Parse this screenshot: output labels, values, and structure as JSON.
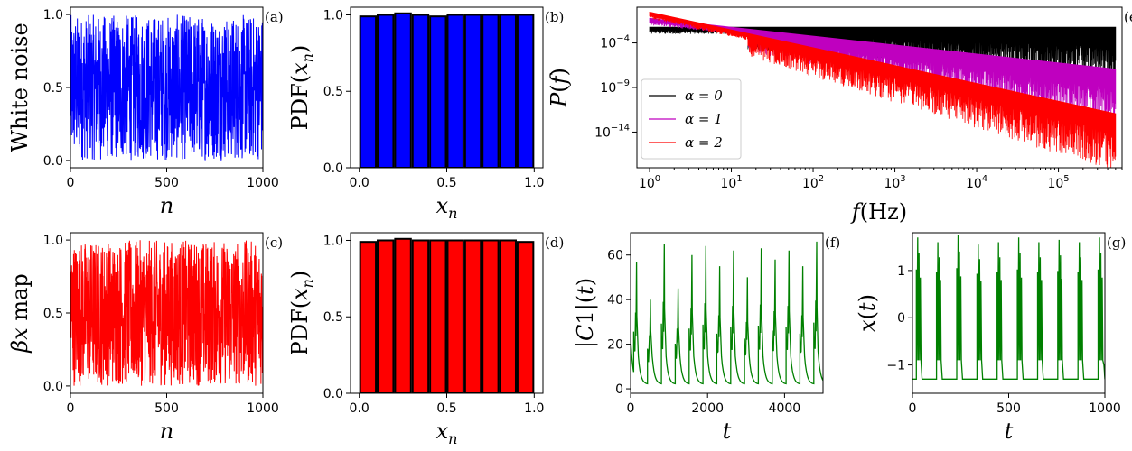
{
  "colors": {
    "white_noise": "#0000ff",
    "beta_map": "#ff0000",
    "alpha0": "#000000",
    "alpha1": "#bf00bf",
    "alpha2": "#ff0000",
    "chaos": "#008000"
  },
  "chart_data": [
    {
      "id": "a",
      "panel_label": "(a)",
      "type": "line",
      "ylabel": "White noise",
      "xlabel": "n",
      "xlim": [
        0,
        1000
      ],
      "ylim": [
        0,
        1
      ],
      "xticks": [
        0,
        500,
        1000
      ],
      "xtick_labels": [
        "0",
        "500",
        "1000"
      ],
      "yticks": [
        0.0,
        0.5,
        1.0
      ],
      "ytick_labels": [
        "0.0",
        "0.5",
        "1.0"
      ],
      "series": [
        {
          "name": "white noise",
          "n_points": 1000,
          "distribution": "uniform",
          "min": 0,
          "max": 1
        }
      ]
    },
    {
      "id": "b",
      "panel_label": "(b)",
      "type": "bar",
      "ylabel": "PDF(x_n)",
      "xlabel": "x_n",
      "xlim": [
        0,
        1
      ],
      "ylim": [
        0,
        1.05
      ],
      "xticks": [
        0.0,
        0.5,
        1.0
      ],
      "xtick_labels": [
        "0.0",
        "0.5",
        "1.0"
      ],
      "yticks": [
        0.0,
        0.5,
        1.0
      ],
      "ytick_labels": [
        "0.0",
        "0.5",
        "1.0"
      ],
      "categories": [
        0.05,
        0.15,
        0.25,
        0.35,
        0.45,
        0.55,
        0.65,
        0.75,
        0.85,
        0.95
      ],
      "values": [
        0.99,
        1.0,
        1.01,
        1.0,
        0.99,
        1.0,
        1.0,
        1.0,
        1.0,
        1.0
      ]
    },
    {
      "id": "e",
      "panel_label": "(e)",
      "type": "line",
      "ylabel": "P(f)",
      "xlabel": "f(Hz)",
      "xscale": "log",
      "yscale": "log",
      "xlim": [
        0.7,
        600000
      ],
      "ylim": [
        1e-18,
        1.0
      ],
      "xticks": [
        1,
        10,
        100,
        1000,
        10000,
        100000
      ],
      "xtick_labels": [
        "10^0",
        "10^1",
        "10^2",
        "10^3",
        "10^4",
        "10^5"
      ],
      "yticks": [
        1e-14,
        1e-09,
        0.0001
      ],
      "ytick_labels": [
        "10^-14",
        "10^-9",
        "10^-4"
      ],
      "legend": {
        "position": "lower-left",
        "entries": [
          "α = 0",
          "α = 1",
          "α = 2"
        ]
      },
      "series": [
        {
          "name": "α = 0",
          "alpha": 0,
          "f_range": [
            1,
            500000
          ],
          "log10_P_at_1Hz": -2.5
        },
        {
          "name": "α = 1",
          "alpha": 1,
          "f_range": [
            1,
            500000
          ],
          "log10_P_at_1Hz": -1.5
        },
        {
          "name": "α = 2",
          "alpha": 2,
          "f_range": [
            1,
            500000
          ],
          "log10_P_at_1Hz": -0.8
        }
      ]
    },
    {
      "id": "c",
      "panel_label": "(c)",
      "type": "line",
      "ylabel": "βx map",
      "xlabel": "n",
      "xlim": [
        0,
        1000
      ],
      "ylim": [
        0,
        1
      ],
      "xticks": [
        0,
        500,
        1000
      ],
      "xtick_labels": [
        "0",
        "500",
        "1000"
      ],
      "yticks": [
        0.0,
        0.5,
        1.0
      ],
      "ytick_labels": [
        "0.0",
        "0.5",
        "1.0"
      ],
      "series": [
        {
          "name": "beta x map",
          "n_points": 1000,
          "distribution": "uniform",
          "min": 0,
          "max": 1
        }
      ]
    },
    {
      "id": "d",
      "panel_label": "(d)",
      "type": "bar",
      "ylabel": "PDF(x_n)",
      "xlabel": "x_n",
      "xlim": [
        0,
        1
      ],
      "ylim": [
        0,
        1.05
      ],
      "xticks": [
        0.0,
        0.5,
        1.0
      ],
      "xtick_labels": [
        "0.0",
        "0.5",
        "1.0"
      ],
      "yticks": [
        0.0,
        0.5,
        1.0
      ],
      "ytick_labels": [
        "0.0",
        "0.5",
        "1.0"
      ],
      "categories": [
        0.05,
        0.15,
        0.25,
        0.35,
        0.45,
        0.55,
        0.65,
        0.75,
        0.85,
        0.95
      ],
      "values": [
        0.99,
        1.0,
        1.01,
        1.0,
        1.0,
        1.0,
        1.0,
        1.0,
        1.0,
        0.99
      ]
    },
    {
      "id": "f",
      "panel_label": "(f)",
      "type": "line",
      "ylabel": "|C1|(t)",
      "xlabel": "t",
      "xlim": [
        0,
        5000
      ],
      "ylim": [
        -2,
        70
      ],
      "xticks": [
        0,
        2000,
        4000
      ],
      "xtick_labels": [
        "0",
        "2000",
        "4000"
      ],
      "yticks": [
        0,
        20,
        40,
        60
      ],
      "ytick_labels": [
        "0",
        "20",
        "40",
        "60"
      ],
      "series": [
        {
          "name": "|C1|(t)",
          "spike_times": [
            80,
            440,
            800,
            1160,
            1520,
            1880,
            2240,
            2600,
            2960,
            3320,
            3680,
            4040,
            4400,
            4760
          ],
          "spike_peak_max": 65,
          "baseline": 2
        }
      ]
    },
    {
      "id": "g",
      "panel_label": "(g)",
      "type": "line",
      "ylabel": "x(t)",
      "xlabel": "t",
      "xlim": [
        0,
        1000
      ],
      "ylim": [
        -1.6,
        1.8
      ],
      "xticks": [
        0,
        500,
        1000
      ],
      "xtick_labels": [
        "0",
        "500",
        "1000"
      ],
      "yticks": [
        -1,
        0,
        1
      ],
      "ytick_labels": [
        "−1",
        "0",
        "1"
      ],
      "series": [
        {
          "name": "x(t)",
          "burst_times": [
            20,
            125,
            230,
            335,
            440,
            545,
            650,
            755,
            860,
            965
          ],
          "peak": 1.75,
          "trough": -1.3
        }
      ]
    }
  ]
}
